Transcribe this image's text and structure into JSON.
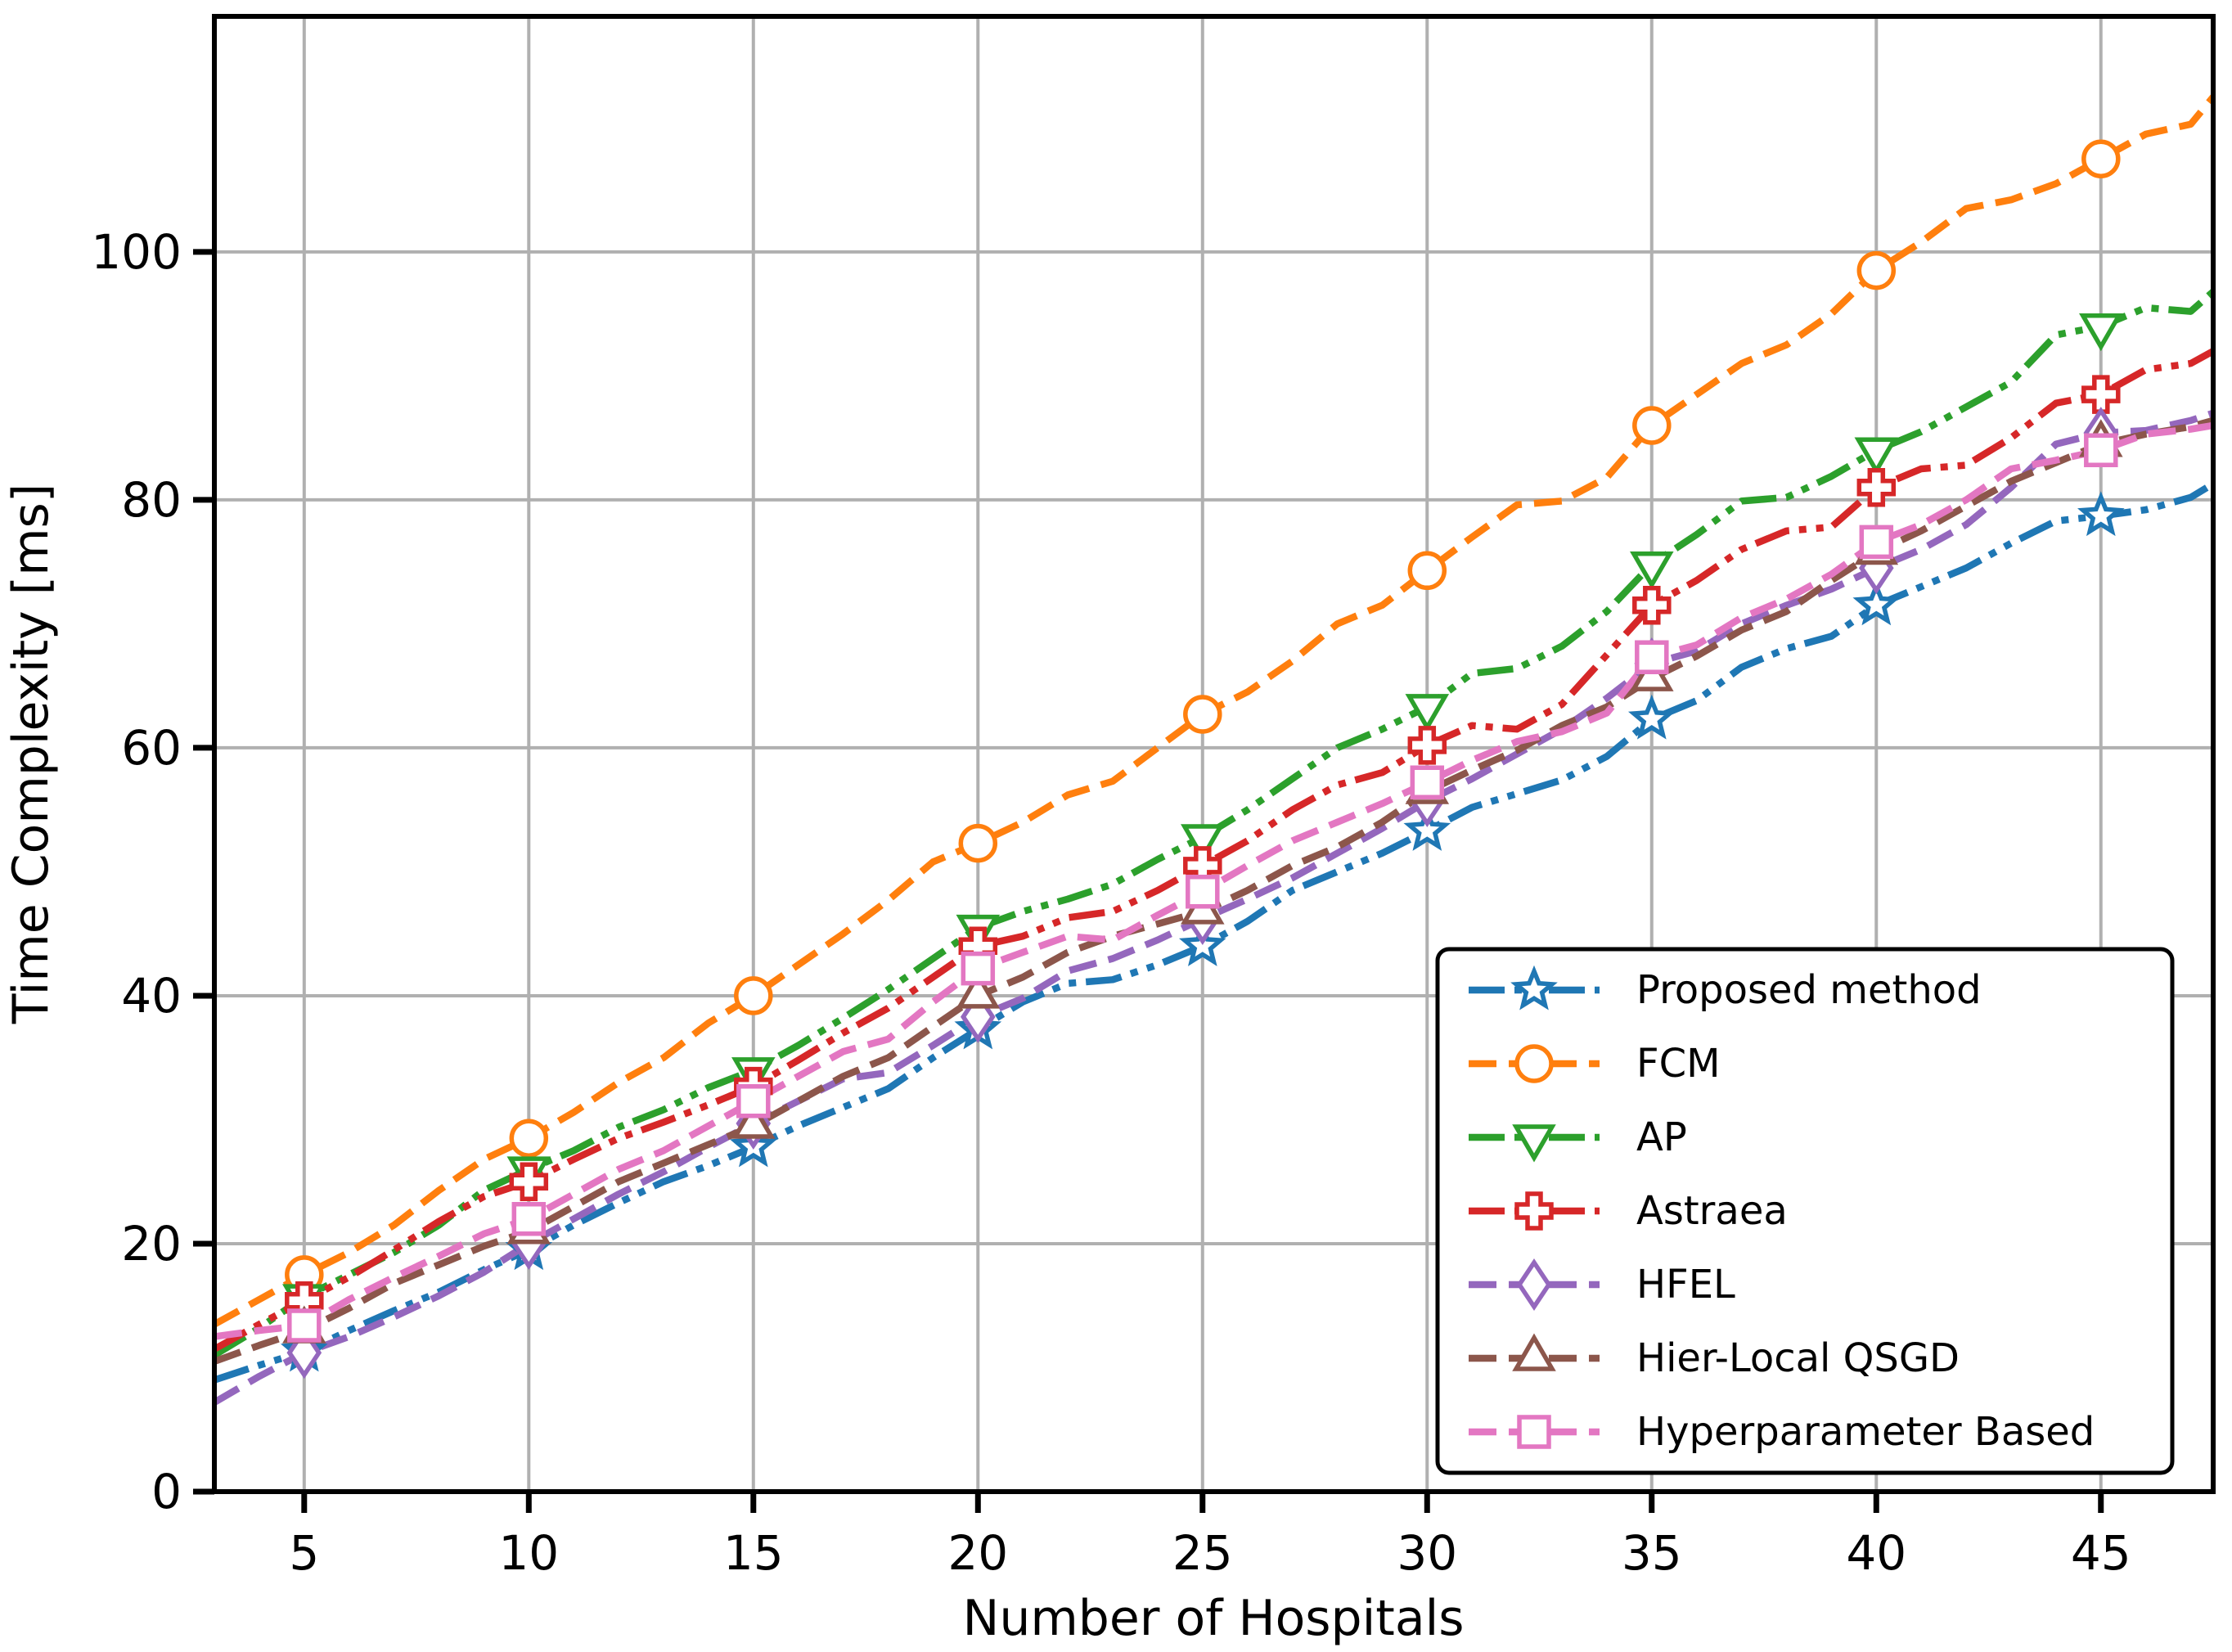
{
  "background": "#ffffff",
  "chart_data": {
    "type": "line",
    "title": "",
    "xlabel": "Number of Hospitals",
    "ylabel": "Time Complexity [ms]",
    "xlim": [
      3,
      47.5
    ],
    "ylim": [
      0,
      119
    ],
    "x_ticks": [
      5,
      10,
      15,
      20,
      25,
      30,
      35,
      40,
      45
    ],
    "y_ticks": [
      0,
      20,
      40,
      60,
      80,
      100
    ],
    "grid": true,
    "grid_color": "#b0b0b0",
    "spine_color": "#000000",
    "legend_position": "lower-right-inside",
    "marker_x": [
      5,
      10,
      15,
      20,
      25,
      30,
      35,
      40,
      45
    ],
    "x": [
      3,
      4,
      5,
      6,
      7,
      8,
      9,
      10,
      11,
      12,
      13,
      14,
      15,
      16,
      17,
      18,
      19,
      20,
      21,
      22,
      23,
      24,
      25,
      26,
      27,
      28,
      29,
      30,
      31,
      32,
      33,
      34,
      35,
      36,
      37,
      38,
      39,
      40,
      41,
      42,
      43,
      44,
      45,
      46,
      47,
      47.5
    ],
    "series": [
      {
        "name": "Proposed method",
        "color": "#1f77b4",
        "marker": "star",
        "linestyle": "dashdotdot",
        "values": [
          9.0,
          10.2,
          11.3,
          13.0,
          14.6,
          16.1,
          17.9,
          19.5,
          21.5,
          23.3,
          25.0,
          26.3,
          27.8,
          29.5,
          31.0,
          32.5,
          35.0,
          37.3,
          39.5,
          41.0,
          41.3,
          42.5,
          44.0,
          46.0,
          48.5,
          50.0,
          51.5,
          53.3,
          55.2,
          56.3,
          57.4,
          59.3,
          62.3,
          63.8,
          66.5,
          68.0,
          69.0,
          71.5,
          73.0,
          74.5,
          76.5,
          78.3,
          78.7,
          79.2,
          80.2,
          81.3
        ]
      },
      {
        "name": "FCM",
        "color": "#ff7f0e",
        "marker": "circle",
        "linestyle": "dashed",
        "values": [
          13.5,
          15.5,
          17.5,
          19.3,
          21.5,
          24.3,
          26.8,
          28.5,
          30.6,
          33.0,
          35.0,
          37.8,
          40.0,
          42.5,
          45.0,
          47.7,
          50.8,
          52.3,
          54.0,
          56.2,
          57.3,
          60.0,
          62.7,
          64.5,
          67.0,
          70.0,
          71.5,
          74.3,
          77.0,
          79.6,
          79.9,
          81.8,
          86.0,
          88.5,
          91.0,
          92.5,
          95.0,
          98.5,
          100.8,
          103.5,
          104.2,
          105.5,
          107.5,
          109.5,
          110.3,
          112.5
        ]
      },
      {
        "name": "AP",
        "color": "#2ca02c",
        "marker": "triangle-down",
        "linestyle": "dashdotdot",
        "values": [
          11.0,
          13.2,
          15.7,
          17.5,
          19.3,
          21.5,
          24.3,
          26.0,
          27.5,
          29.4,
          30.8,
          32.6,
          34.0,
          36.0,
          38.2,
          40.5,
          43.0,
          45.5,
          46.8,
          47.8,
          49.0,
          51.0,
          52.8,
          55.0,
          57.5,
          60.0,
          61.5,
          63.3,
          66.0,
          66.4,
          68.2,
          71.0,
          74.8,
          77.2,
          79.9,
          80.2,
          81.9,
          84.0,
          85.5,
          87.5,
          89.5,
          93.3,
          94.0,
          95.5,
          95.2,
          96.8
        ]
      },
      {
        "name": "Astraea",
        "color": "#d62728",
        "marker": "plus",
        "linestyle": "dashdotdot",
        "values": [
          11.5,
          13.5,
          15.4,
          17.3,
          19.5,
          21.8,
          23.8,
          25.0,
          26.8,
          28.5,
          29.8,
          31.2,
          32.7,
          34.8,
          37.0,
          39.0,
          41.5,
          44.0,
          44.8,
          46.3,
          46.8,
          48.5,
          50.5,
          52.5,
          55.0,
          57.0,
          58.0,
          60.2,
          61.8,
          61.5,
          63.5,
          67.5,
          71.5,
          73.5,
          76.0,
          77.5,
          77.8,
          81.0,
          82.5,
          82.8,
          85.0,
          87.8,
          88.5,
          90.5,
          91.0,
          92.0
        ]
      },
      {
        "name": "HFEL",
        "color": "#9467bd",
        "marker": "diamond",
        "linestyle": "dashed",
        "values": [
          7.2,
          9.3,
          11.2,
          12.5,
          14.1,
          15.8,
          17.7,
          20.0,
          22.0,
          24.0,
          25.8,
          27.8,
          29.7,
          31.5,
          33.3,
          33.8,
          36.0,
          38.3,
          39.8,
          42.0,
          43.0,
          44.5,
          46.2,
          47.8,
          49.5,
          51.5,
          53.5,
          55.7,
          57.5,
          59.5,
          61.5,
          64.0,
          66.8,
          67.8,
          70.0,
          71.5,
          72.8,
          74.5,
          76.0,
          78.0,
          81.0,
          84.5,
          85.4,
          85.6,
          86.4,
          87.0
        ]
      },
      {
        "name": "Hier-Local QSGD",
        "color": "#8c564b",
        "marker": "triangle-up",
        "linestyle": "dashed",
        "values": [
          10.5,
          11.8,
          13.0,
          14.8,
          16.8,
          18.3,
          19.8,
          21.0,
          23.0,
          25.0,
          26.5,
          28.0,
          29.5,
          31.5,
          33.5,
          35.0,
          37.5,
          40.0,
          41.5,
          43.5,
          44.8,
          45.8,
          46.8,
          48.5,
          50.5,
          52.0,
          54.0,
          56.5,
          58.2,
          59.8,
          61.8,
          63.3,
          65.6,
          67.4,
          69.5,
          71.0,
          73.5,
          75.8,
          77.5,
          79.5,
          81.5,
          83.0,
          84.5,
          85.3,
          85.9,
          86.4
        ]
      },
      {
        "name": "Hyperparameter Based",
        "color": "#e377c2",
        "marker": "square",
        "linestyle": "dashed",
        "values": [
          12.5,
          13.0,
          13.4,
          15.5,
          17.3,
          19.0,
          20.8,
          22.0,
          24.0,
          26.0,
          27.5,
          29.5,
          31.5,
          33.5,
          35.5,
          36.5,
          39.5,
          42.2,
          43.5,
          44.8,
          44.5,
          46.5,
          48.4,
          50.5,
          52.5,
          54.0,
          55.5,
          57.2,
          59.0,
          60.5,
          61.3,
          62.8,
          67.3,
          68.3,
          70.5,
          72.0,
          74.0,
          76.6,
          78.0,
          80.0,
          82.5,
          83.2,
          84.0,
          85.3,
          85.7,
          86.0
        ]
      }
    ]
  }
}
